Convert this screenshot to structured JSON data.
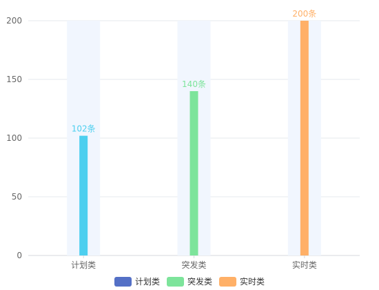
{
  "chart_data": {
    "type": "bar",
    "categories": [
      "计划类",
      "突发类",
      "实时类"
    ],
    "values": [
      102,
      140,
      200
    ],
    "data_labels": [
      "102条",
      "140条",
      "200条"
    ],
    "colors": [
      "#4dcfef",
      "#7de49b",
      "#ffb067"
    ],
    "background_band_color": "#f1f6fe",
    "ylim": [
      0,
      200
    ],
    "yticks": [
      0,
      50,
      100,
      150,
      200
    ],
    "grid": true,
    "legend": {
      "placement": "bottom-center",
      "items": [
        {
          "label": "计划类",
          "color": "#5470c6"
        },
        {
          "label": "突发类",
          "color": "#7de49b"
        },
        {
          "label": "实时类",
          "color": "#ffb067"
        }
      ]
    }
  }
}
